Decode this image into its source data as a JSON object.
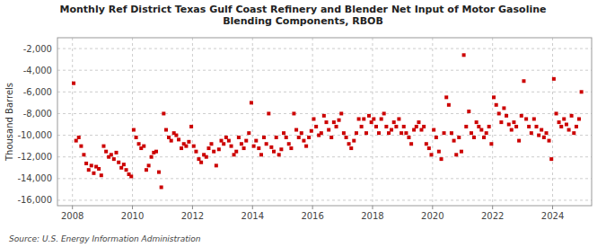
{
  "chart_data": {
    "type": "scatter",
    "title": "Monthly Ref District Texas Gulf Coast Refinery and Blender Net Input of Motor Gasoline\nBlending Components, RBOB",
    "y_label": "Thousand Barrels",
    "annotations": [
      "Source: U.S. Energy Information Administration"
    ],
    "color": "#cc0000",
    "marker": "square",
    "grid": true,
    "xlim": [
      2007.5,
      2025.3
    ],
    "xticks": [
      2008,
      2010,
      2012,
      2014,
      2016,
      2018,
      2020,
      2022,
      2024
    ],
    "ylim": [
      -16500,
      -1000
    ],
    "yticks": [
      {
        "value": -2000,
        "label": "-2,000"
      },
      {
        "value": -4000,
        "label": "-4,000"
      },
      {
        "value": -6000,
        "label": "-6,000"
      },
      {
        "value": -8000,
        "label": "-8,000"
      },
      {
        "value": -10000,
        "label": "-10,000"
      },
      {
        "value": -12000,
        "label": "-12,000"
      },
      {
        "value": -14000,
        "label": "-14,000"
      },
      {
        "value": -16000,
        "label": "-16,000"
      }
    ],
    "x": [
      2008.04,
      2008.12,
      2008.21,
      2008.29,
      2008.38,
      2008.46,
      2008.54,
      2008.63,
      2008.71,
      2008.79,
      2008.88,
      2008.96,
      2009.04,
      2009.12,
      2009.21,
      2009.29,
      2009.38,
      2009.46,
      2009.54,
      2009.63,
      2009.71,
      2009.79,
      2009.88,
      2009.96,
      2010.04,
      2010.12,
      2010.21,
      2010.29,
      2010.38,
      2010.46,
      2010.54,
      2010.63,
      2010.71,
      2010.79,
      2010.88,
      2010.96,
      2011.04,
      2011.12,
      2011.21,
      2011.29,
      2011.38,
      2011.46,
      2011.54,
      2011.63,
      2011.71,
      2011.79,
      2011.88,
      2011.96,
      2012.04,
      2012.12,
      2012.21,
      2012.29,
      2012.38,
      2012.46,
      2012.54,
      2012.63,
      2012.71,
      2012.79,
      2012.88,
      2012.96,
      2013.04,
      2013.12,
      2013.21,
      2013.29,
      2013.38,
      2013.46,
      2013.54,
      2013.63,
      2013.71,
      2013.79,
      2013.88,
      2013.96,
      2014.04,
      2014.12,
      2014.21,
      2014.29,
      2014.38,
      2014.46,
      2014.54,
      2014.63,
      2014.71,
      2014.79,
      2014.88,
      2014.96,
      2015.04,
      2015.12,
      2015.21,
      2015.29,
      2015.38,
      2015.46,
      2015.54,
      2015.63,
      2015.71,
      2015.79,
      2015.88,
      2015.96,
      2016.04,
      2016.12,
      2016.21,
      2016.29,
      2016.38,
      2016.46,
      2016.54,
      2016.63,
      2016.71,
      2016.79,
      2016.88,
      2016.96,
      2017.04,
      2017.12,
      2017.21,
      2017.29,
      2017.38,
      2017.46,
      2017.54,
      2017.63,
      2017.71,
      2017.79,
      2017.88,
      2017.96,
      2018.04,
      2018.12,
      2018.21,
      2018.29,
      2018.38,
      2018.46,
      2018.54,
      2018.63,
      2018.71,
      2018.79,
      2018.88,
      2018.96,
      2019.04,
      2019.12,
      2019.21,
      2019.29,
      2019.38,
      2019.46,
      2019.54,
      2019.63,
      2019.71,
      2019.79,
      2019.88,
      2019.96,
      2020.04,
      2020.12,
      2020.21,
      2020.29,
      2020.38,
      2020.46,
      2020.54,
      2020.63,
      2020.71,
      2020.79,
      2020.88,
      2020.96,
      2021.04,
      2021.12,
      2021.21,
      2021.29,
      2021.38,
      2021.46,
      2021.54,
      2021.63,
      2021.71,
      2021.79,
      2021.88,
      2021.96,
      2022.04,
      2022.12,
      2022.21,
      2022.29,
      2022.38,
      2022.46,
      2022.54,
      2022.63,
      2022.71,
      2022.79,
      2022.88,
      2022.96,
      2023.04,
      2023.12,
      2023.21,
      2023.29,
      2023.38,
      2023.46,
      2023.54,
      2023.63,
      2023.71,
      2023.79,
      2023.88,
      2023.96,
      2024.04,
      2024.12,
      2024.21,
      2024.29,
      2024.38,
      2024.46,
      2024.54,
      2024.63,
      2024.71,
      2024.79,
      2024.88,
      2024.96
    ],
    "values": [
      -5200,
      -10500,
      -10200,
      -11000,
      -11800,
      -12600,
      -13200,
      -12800,
      -13500,
      -12900,
      -13100,
      -13700,
      -11000,
      -11500,
      -12000,
      -11800,
      -12200,
      -11600,
      -12500,
      -13000,
      -12700,
      -13200,
      -13600,
      -13800,
      -9500,
      -10200,
      -10800,
      -11200,
      -11000,
      -13200,
      -12800,
      -12000,
      -11600,
      -11500,
      -13400,
      -14800,
      -8000,
      -9500,
      -10200,
      -10500,
      -9800,
      -10000,
      -10400,
      -11200,
      -10800,
      -11000,
      -10600,
      -9200,
      -11000,
      -11500,
      -12200,
      -12500,
      -11800,
      -12000,
      -11200,
      -10800,
      -11500,
      -12800,
      -11300,
      -10500,
      -10800,
      -10200,
      -10500,
      -11000,
      -11800,
      -11500,
      -10200,
      -10800,
      -11200,
      -10500,
      -9800,
      -7000,
      -11000,
      -10500,
      -11200,
      -11800,
      -10200,
      -10800,
      -8000,
      -11100,
      -11500,
      -10200,
      -11800,
      -11300,
      -9800,
      -10200,
      -10800,
      -11200,
      -8000,
      -9500,
      -10200,
      -9800,
      -10500,
      -11000,
      -10200,
      -9600,
      -8500,
      -9200,
      -10000,
      -9800,
      -8200,
      -8800,
      -9500,
      -10200,
      -8800,
      -9200,
      -8600,
      -8000,
      -9800,
      -10200,
      -10800,
      -11200,
      -10500,
      -9800,
      -8500,
      -9200,
      -8500,
      -9800,
      -8200,
      -8800,
      -8500,
      -9200,
      -9800,
      -8500,
      -8000,
      -9200,
      -9800,
      -9500,
      -8800,
      -9200,
      -8500,
      -9800,
      -9200,
      -9800,
      -10200,
      -10800,
      -9500,
      -9200,
      -8800,
      -9500,
      -9200,
      -10800,
      -11200,
      -11800,
      -9500,
      -10200,
      -11500,
      -12200,
      -9800,
      -6500,
      -7200,
      -9800,
      -10500,
      -11800,
      -10200,
      -11500,
      -2600,
      -9200,
      -7800,
      -9800,
      -10200,
      -8800,
      -9200,
      -9500,
      -10200,
      -9800,
      -9200,
      -10800,
      -6500,
      -7200,
      -8000,
      -8800,
      -7500,
      -8200,
      -9000,
      -9500,
      -8800,
      -9200,
      -10500,
      -8200,
      -5000,
      -8500,
      -9200,
      -9800,
      -8500,
      -9200,
      -10000,
      -9500,
      -10200,
      -9800,
      -10500,
      -12200,
      -4800,
      -8000,
      -8800,
      -9200,
      -8500,
      -9000,
      -9500,
      -8200,
      -9800,
      -9200,
      -8500,
      -6000
    ]
  }
}
